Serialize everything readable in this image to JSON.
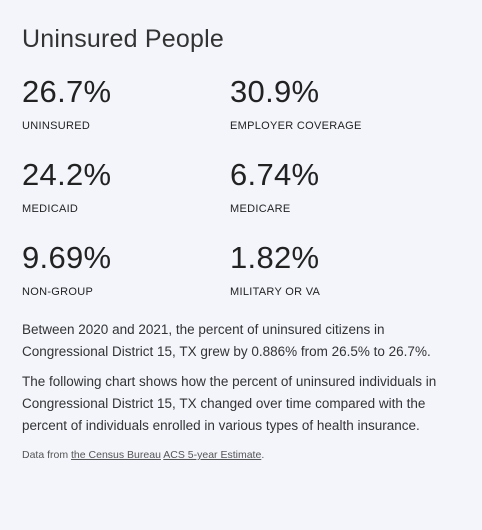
{
  "title": "Uninsured People",
  "stats": [
    {
      "value": "26.7%",
      "label": "UNINSURED"
    },
    {
      "value": "30.9%",
      "label": "EMPLOYER COVERAGE"
    },
    {
      "value": "24.2%",
      "label": "MEDICAID"
    },
    {
      "value": "6.74%",
      "label": "MEDICARE"
    },
    {
      "value": "9.69%",
      "label": "NON-GROUP"
    },
    {
      "value": "1.82%",
      "label": "MILITARY OR VA"
    }
  ],
  "paragraph1": "Between 2020 and 2021, the percent of uninsured citizens in Congressional District 15, TX grew by 0.886% from 26.5% to 26.7%.",
  "paragraph2": "The following chart shows how the percent of uninsured individuals in Congressional District 15, TX changed over time compared with the percent of individuals enrolled in various types of health insurance.",
  "source": {
    "prefix": "Data from ",
    "link1": "the Census Bureau",
    "space": " ",
    "link2": "ACS 5-year Estimate",
    "suffix": "."
  }
}
